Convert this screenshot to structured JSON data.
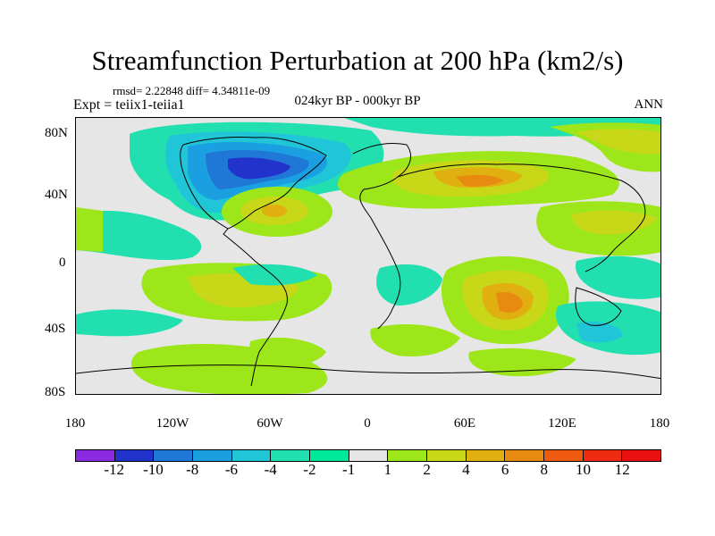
{
  "title": "Streamfunction Perturbation at 200 hPa (km2/s)",
  "stats": "rmsd= 2.22848 diff= 4.34811e-09",
  "experiment": "Expt = teiix1-teiia1",
  "period": "024kyr BP - 000kyr BP",
  "season": "ANN",
  "lat_ticks": [
    "80N",
    "40N",
    "0",
    "40S",
    "80S"
  ],
  "lon_ticks": [
    "180",
    "120W",
    "60W",
    "0",
    "60E",
    "120E",
    "180"
  ],
  "colorbar": {
    "labels": [
      "-12",
      "-10",
      "-8",
      "-6",
      "-4",
      "-2",
      "-1",
      "1",
      "2",
      "4",
      "6",
      "8",
      "10",
      "12"
    ],
    "colors": [
      "#8a2be2",
      "#2233cc",
      "#1f77d6",
      "#1aa0e0",
      "#20c5d8",
      "#22dfb0",
      "#00e89a",
      "#e6e6e6",
      "#9de61a",
      "#c8d818",
      "#e0b010",
      "#e88a10",
      "#ee5a10",
      "#ee2a10",
      "#e81010"
    ]
  },
  "map": {
    "projection": "cylindrical-equidistant",
    "lon_range": [
      -180,
      180
    ],
    "lat_range": [
      -90,
      90
    ],
    "contour_levels": [
      -12,
      -10,
      -8,
      -6,
      -4,
      -2,
      -1,
      1,
      2,
      4,
      6,
      8,
      10,
      12
    ],
    "background_color": "#e6e6e6"
  }
}
